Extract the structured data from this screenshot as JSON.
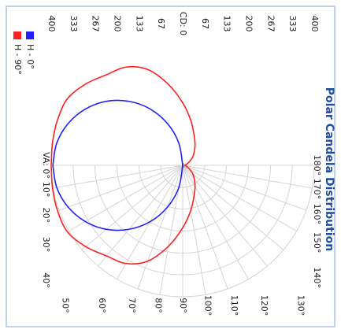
{
  "chart_data": {
    "type": "polar",
    "title": "Polar Candela Distribution",
    "angles": [
      0,
      10,
      20,
      30,
      40,
      50,
      60,
      70,
      80,
      90,
      100,
      110,
      120,
      130,
      140,
      150,
      160,
      170,
      180
    ],
    "series": [
      {
        "name": "H - 90°",
        "color": "#ff2020",
        "values": [
          400,
          402,
          405,
          405,
          385,
          360,
          345,
          310,
          250,
          190,
          140,
          100,
          75,
          55,
          40,
          25,
          15,
          8,
          5
        ]
      },
      {
        "name": "H - 0°",
        "color": "#2020ff",
        "values": [
          395,
          389,
          371,
          342,
          303,
          254,
          198,
          135,
          69,
          0,
          0,
          0,
          0,
          0,
          0,
          0,
          0,
          0,
          0
        ]
      }
    ],
    "rlim": [
      0,
      400
    ],
    "rticks": [
      {
        "value": 0,
        "label": "CD: 0"
      },
      67,
      133,
      200,
      267,
      333,
      400
    ],
    "angle_ticks": [
      {
        "value": 0,
        "label": "VA: 0°"
      },
      {
        "value": 10,
        "label": "10°"
      },
      {
        "value": 20,
        "label": "20°"
      },
      {
        "value": 30,
        "label": "30°"
      },
      {
        "value": 40,
        "label": "40°"
      },
      {
        "value": 50,
        "label": "50°"
      },
      {
        "value": 60,
        "label": "60°"
      },
      {
        "value": 70,
        "label": "70°"
      },
      {
        "value": 80,
        "label": "80°"
      },
      {
        "value": 90,
        "label": "90°"
      },
      {
        "value": 100,
        "label": "100°"
      },
      {
        "value": 110,
        "label": "110°"
      },
      {
        "value": 120,
        "label": "120°"
      },
      {
        "value": 130,
        "label": "130°"
      },
      {
        "value": 140,
        "label": "140°"
      },
      {
        "value": 150,
        "label": "150°"
      },
      {
        "value": 160,
        "label": "160°"
      },
      {
        "value": 170,
        "label": "170°"
      },
      {
        "value": 180,
        "label": "180°"
      }
    ],
    "grid": true
  }
}
